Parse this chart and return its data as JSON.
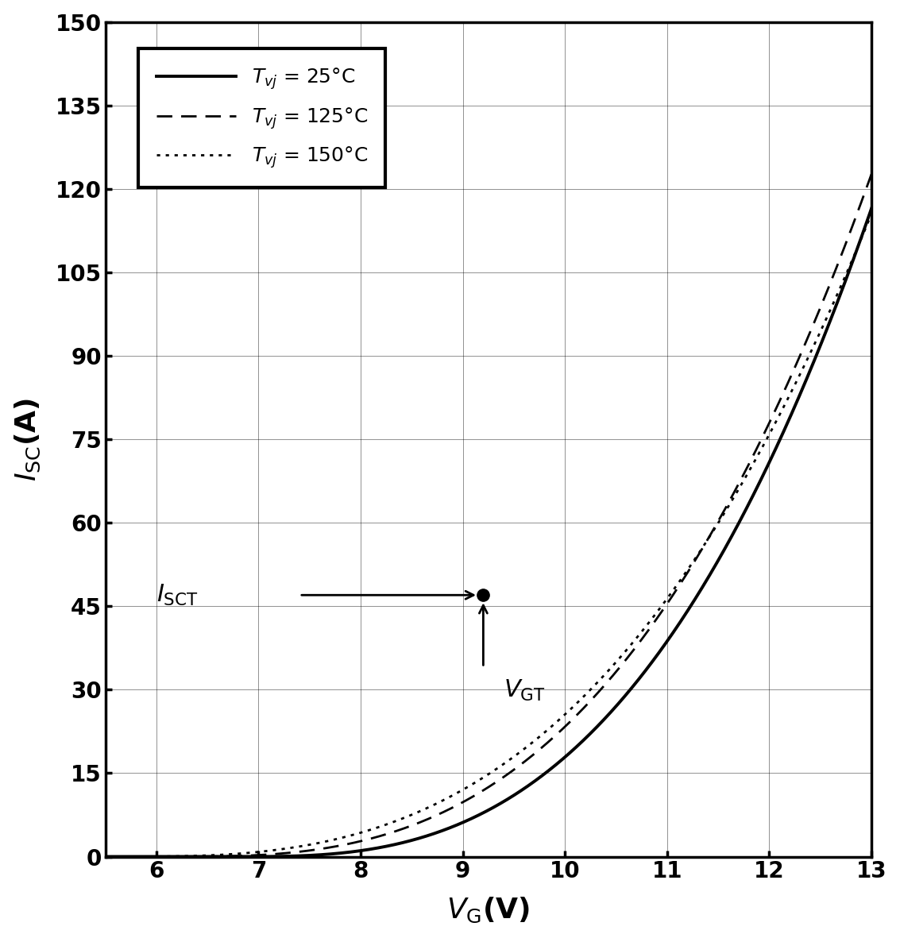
{
  "xlabel": "$V_{\\mathrm{G}}$(V)",
  "ylabel": "$I_{\\mathrm{SC}}$(A)",
  "xlim": [
    5.5,
    13
  ],
  "ylim": [
    0,
    150
  ],
  "xticks": [
    6,
    7,
    8,
    9,
    10,
    11,
    12,
    13
  ],
  "yticks": [
    0,
    15,
    30,
    45,
    60,
    75,
    90,
    105,
    120,
    135,
    150
  ],
  "legend": [
    {
      "label": "$T_{vj}$ = 25°C",
      "linestyle": "solid",
      "linewidth": 2.8
    },
    {
      "label": "$T_{vj}$ = 125°C",
      "linestyle": "dashed",
      "linewidth": 2.0
    },
    {
      "label": "$T_{vj}$ = 150°C",
      "linestyle": "dotted",
      "linewidth": 2.0
    }
  ],
  "annotation_isct": "$I_{\\mathrm{SCT}}$",
  "annotation_vgt": "$V_{\\mathrm{GT}}$",
  "isct_point": [
    9.2,
    47
  ],
  "curve1": {
    "vth": 6.85,
    "k": 0.72,
    "n": 2.8
  },
  "curve2": {
    "vth": 6.2,
    "k": 0.52,
    "n": 2.85
  },
  "curve3": {
    "vth": 5.7,
    "k": 0.4,
    "n": 2.85
  },
  "background_color": "#ffffff",
  "line_color": "#000000"
}
